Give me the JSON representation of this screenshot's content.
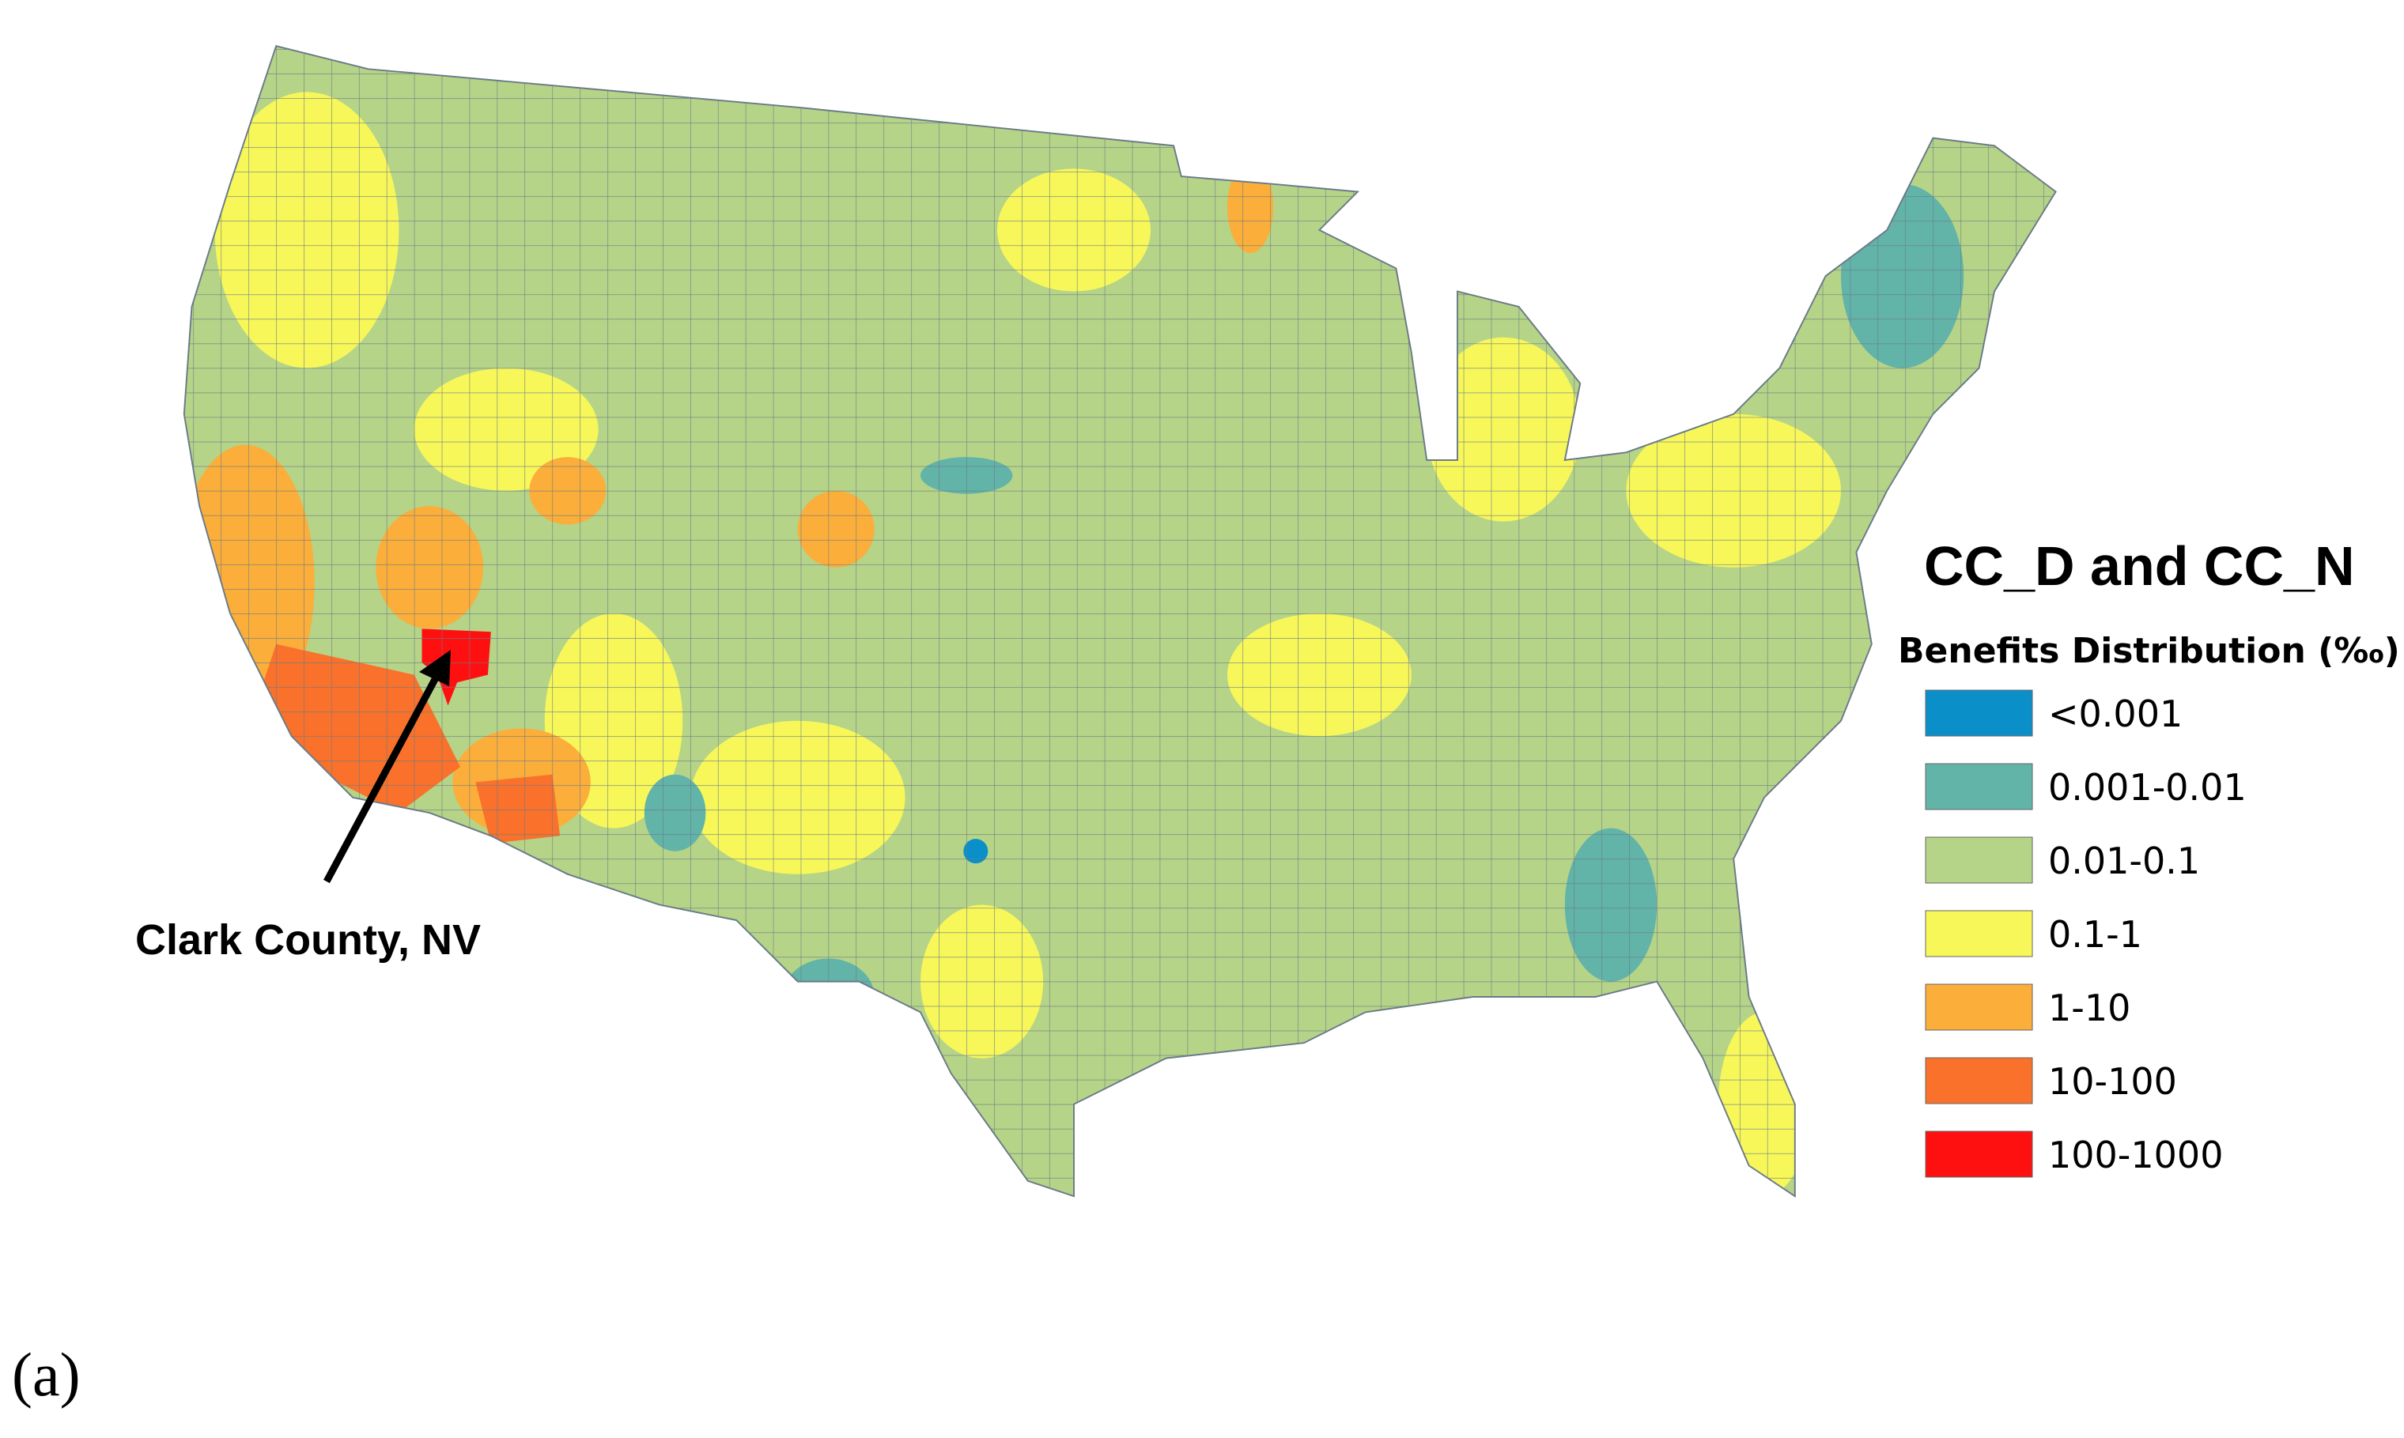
{
  "title": "CC_D and CC_N",
  "legend": {
    "title": "Benefits Distribution (‰)",
    "items": [
      {
        "label": "<0.001",
        "color": "#0b8fc9"
      },
      {
        "label": "0.001-0.01",
        "color": "#62b3a8"
      },
      {
        "label": "0.01-0.1",
        "color": "#b5d487"
      },
      {
        "label": "0.1-1",
        "color": "#f7f75a"
      },
      {
        "label": "1-10",
        "color": "#fbae3a"
      },
      {
        "label": "10-100",
        "color": "#f9712a"
      },
      {
        "label": "100-1000",
        "color": "#ff1010"
      }
    ]
  },
  "annotation": "Clark County, NV",
  "panel_label": "(a)"
}
